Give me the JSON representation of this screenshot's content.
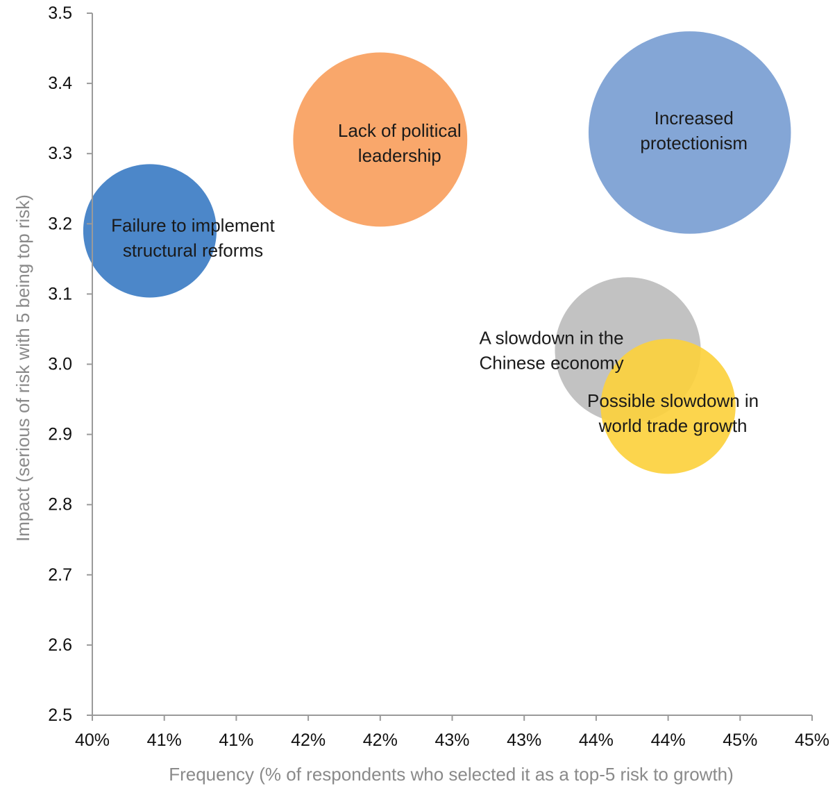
{
  "chart_data": {
    "type": "scatter",
    "subtype": "bubble",
    "xlabel": "Frequency (% of respondents who selected it as a top-5 risk to growth)",
    "ylabel": "Impact (serious of risk with 5 being top risk)",
    "x_tick_labels": [
      "40%",
      "41%",
      "41%",
      "42%",
      "42%",
      "43%",
      "43%",
      "44%",
      "44%",
      "45%",
      "45%"
    ],
    "x_tick_values": [
      40.0,
      40.5,
      41.0,
      41.5,
      42.0,
      42.5,
      43.0,
      43.5,
      44.0,
      44.5,
      45.0
    ],
    "xlim": [
      40.0,
      45.0
    ],
    "y_tick_labels": [
      "2.5",
      "2.6",
      "2.7",
      "2.8",
      "2.9",
      "3.0",
      "3.1",
      "3.2",
      "3.3",
      "3.4",
      "3.5"
    ],
    "y_tick_values": [
      2.5,
      2.6,
      2.7,
      2.8,
      2.9,
      3.0,
      3.1,
      3.2,
      3.3,
      3.4,
      3.5
    ],
    "ylim": [
      2.5,
      3.5
    ],
    "grid": false,
    "legend": "none",
    "series": [
      {
        "label_lines": [
          "Failure to implement",
          "structural reforms"
        ],
        "x": 40.4,
        "y": 3.19,
        "size": 0.85,
        "color": "#3d7dc4"
      },
      {
        "label_lines": [
          "Lack of political",
          "leadership"
        ],
        "x": 42.0,
        "y": 3.32,
        "size": 1.11,
        "color": "#f8a05e"
      },
      {
        "label_lines": [
          "Increased",
          "protectionism"
        ],
        "x": 44.15,
        "y": 3.33,
        "size": 1.29,
        "color": "#7a9ed3"
      },
      {
        "label_lines": [
          "A slowdown in the",
          "Chinese economy"
        ],
        "x": 43.72,
        "y": 3.02,
        "size": 0.93,
        "color": "#bdbdbd"
      },
      {
        "label_lines": [
          "Possible slowdown in",
          "world trade growth"
        ],
        "x": 44.0,
        "y": 2.94,
        "size": 0.86,
        "color": "#fcd13e"
      }
    ]
  }
}
